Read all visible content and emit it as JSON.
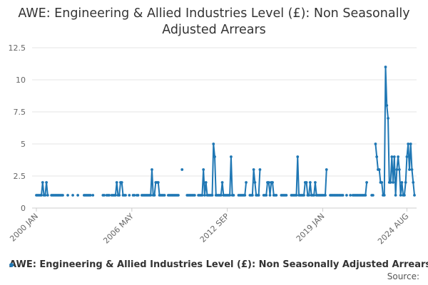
{
  "chart_data": {
    "type": "line",
    "title": "AWE: Engineering & Allied Industries Level (£): Non Seasonally Adjusted Arrears",
    "xlabel": "",
    "ylabel": "",
    "ylim": [
      0,
      12.5
    ],
    "yticks": [
      "0",
      "2.5",
      "5",
      "7.5",
      "10",
      "12.5"
    ],
    "xticks": [
      "2000 JAN",
      "2006 MAY",
      "2012 SEP",
      "2019 JAN",
      "2024 AUG"
    ],
    "xtick_dates": [
      "2000-01",
      "2006-05",
      "2012-09",
      "2019-01",
      "2024-08"
    ],
    "grid": "horizontal",
    "legend_position": "bottom",
    "color": "#1f77b4",
    "series": [
      {
        "name": "AWE: Engineering & Allied Industries Level (£): Non Seasonally Adjusted Arrears",
        "points": [
          [
            "2000-01",
            1
          ],
          [
            "2000-02",
            1
          ],
          [
            "2000-03",
            1
          ],
          [
            "2000-04",
            1
          ],
          [
            "2000-05",
            1
          ],
          [
            "2000-06",
            2
          ],
          [
            "2000-07",
            1
          ],
          [
            "2000-08",
            1
          ],
          [
            "2000-09",
            2
          ],
          [
            "2000-10",
            1
          ],
          [
            "2001-01",
            1
          ],
          [
            "2001-02",
            1
          ],
          [
            "2001-03",
            1
          ],
          [
            "2001-04",
            1
          ],
          [
            "2001-05",
            1
          ],
          [
            "2001-06",
            1
          ],
          [
            "2001-07",
            1
          ],
          [
            "2001-08",
            1
          ],
          [
            "2001-09",
            1
          ],
          [
            "2001-10",
            1
          ],
          [
            "2002-02",
            1
          ],
          [
            "2002-06",
            1
          ],
          [
            "2002-10",
            1
          ],
          [
            "2003-03",
            1
          ],
          [
            "2003-04",
            1
          ],
          [
            "2003-05",
            1
          ],
          [
            "2003-06",
            1
          ],
          [
            "2003-07",
            1
          ],
          [
            "2003-08",
            1
          ],
          [
            "2003-10",
            1
          ],
          [
            "2004-06",
            1
          ],
          [
            "2004-07",
            1
          ],
          [
            "2004-09",
            1
          ],
          [
            "2004-10",
            1
          ],
          [
            "2004-11",
            1
          ],
          [
            "2005-01",
            1
          ],
          [
            "2005-02",
            1
          ],
          [
            "2005-03",
            1
          ],
          [
            "2005-04",
            1
          ],
          [
            "2005-05",
            2
          ],
          [
            "2005-06",
            1
          ],
          [
            "2005-07",
            1
          ],
          [
            "2005-08",
            2
          ],
          [
            "2005-09",
            2
          ],
          [
            "2005-10",
            1
          ],
          [
            "2005-11",
            1
          ],
          [
            "2005-12",
            1
          ],
          [
            "2006-03",
            1
          ],
          [
            "2006-06",
            1
          ],
          [
            "2006-07",
            1
          ],
          [
            "2006-09",
            1
          ],
          [
            "2006-10",
            1
          ],
          [
            "2007-01",
            1
          ],
          [
            "2007-02",
            1
          ],
          [
            "2007-03",
            1
          ],
          [
            "2007-04",
            1
          ],
          [
            "2007-05",
            1
          ],
          [
            "2007-06",
            1
          ],
          [
            "2007-07",
            1
          ],
          [
            "2007-08",
            1
          ],
          [
            "2007-09",
            3
          ],
          [
            "2007-10",
            1
          ],
          [
            "2007-11",
            1
          ],
          [
            "2007-12",
            2
          ],
          [
            "2008-01",
            2
          ],
          [
            "2008-02",
            2
          ],
          [
            "2008-03",
            1
          ],
          [
            "2008-04",
            1
          ],
          [
            "2008-05",
            1
          ],
          [
            "2008-06",
            1
          ],
          [
            "2008-07",
            1
          ],
          [
            "2008-10",
            1
          ],
          [
            "2008-11",
            1
          ],
          [
            "2008-12",
            1
          ],
          [
            "2009-01",
            1
          ],
          [
            "2009-02",
            1
          ],
          [
            "2009-03",
            1
          ],
          [
            "2009-04",
            1
          ],
          [
            "2009-05",
            1
          ],
          [
            "2009-06",
            1
          ],
          [
            "2009-09",
            3
          ],
          [
            "2010-01",
            1
          ],
          [
            "2010-02",
            1
          ],
          [
            "2010-03",
            1
          ],
          [
            "2010-04",
            1
          ],
          [
            "2010-05",
            1
          ],
          [
            "2010-06",
            1
          ],
          [
            "2010-07",
            1
          ],
          [
            "2010-10",
            1
          ],
          [
            "2010-11",
            1
          ],
          [
            "2010-12",
            1
          ],
          [
            "2011-01",
            1
          ],
          [
            "2011-02",
            3
          ],
          [
            "2011-03",
            1
          ],
          [
            "2011-04",
            2
          ],
          [
            "2011-05",
            1
          ],
          [
            "2011-06",
            1
          ],
          [
            "2011-07",
            1
          ],
          [
            "2011-08",
            1
          ],
          [
            "2011-09",
            1
          ],
          [
            "2011-10",
            5
          ],
          [
            "2011-11",
            4
          ],
          [
            "2011-12",
            1
          ],
          [
            "2012-01",
            1
          ],
          [
            "2012-02",
            1
          ],
          [
            "2012-03",
            1
          ],
          [
            "2012-04",
            1
          ],
          [
            "2012-05",
            2
          ],
          [
            "2012-06",
            1
          ],
          [
            "2012-07",
            1
          ],
          [
            "2012-08",
            1
          ],
          [
            "2012-09",
            1
          ],
          [
            "2012-10",
            1
          ],
          [
            "2012-11",
            1
          ],
          [
            "2012-12",
            4
          ],
          [
            "2013-01",
            1
          ],
          [
            "2013-02",
            1
          ],
          [
            "2013-06",
            1
          ],
          [
            "2013-07",
            1
          ],
          [
            "2013-08",
            1
          ],
          [
            "2013-09",
            1
          ],
          [
            "2013-10",
            1
          ],
          [
            "2013-11",
            1
          ],
          [
            "2013-12",
            2
          ],
          [
            "2014-03",
            1
          ],
          [
            "2014-04",
            1
          ],
          [
            "2014-05",
            1
          ],
          [
            "2014-06",
            3
          ],
          [
            "2014-07",
            2
          ],
          [
            "2014-08",
            1
          ],
          [
            "2014-09",
            1
          ],
          [
            "2014-10",
            1
          ],
          [
            "2014-11",
            3
          ],
          [
            "2015-02",
            1
          ],
          [
            "2015-03",
            1
          ],
          [
            "2015-04",
            1
          ],
          [
            "2015-05",
            2
          ],
          [
            "2015-06",
            2
          ],
          [
            "2015-07",
            1
          ],
          [
            "2015-08",
            2
          ],
          [
            "2015-09",
            2
          ],
          [
            "2015-10",
            1
          ],
          [
            "2015-11",
            1
          ],
          [
            "2015-12",
            1
          ],
          [
            "2016-04",
            1
          ],
          [
            "2016-05",
            1
          ],
          [
            "2016-06",
            1
          ],
          [
            "2016-07",
            1
          ],
          [
            "2016-08",
            1
          ],
          [
            "2016-12",
            1
          ],
          [
            "2017-01",
            1
          ],
          [
            "2017-02",
            1
          ],
          [
            "2017-03",
            1
          ],
          [
            "2017-04",
            1
          ],
          [
            "2017-05",
            4
          ],
          [
            "2017-06",
            1
          ],
          [
            "2017-07",
            1
          ],
          [
            "2017-08",
            1
          ],
          [
            "2017-09",
            1
          ],
          [
            "2017-10",
            1
          ],
          [
            "2017-11",
            2
          ],
          [
            "2017-12",
            2
          ],
          [
            "2018-01",
            1
          ],
          [
            "2018-02",
            1
          ],
          [
            "2018-03",
            2
          ],
          [
            "2018-04",
            1
          ],
          [
            "2018-05",
            1
          ],
          [
            "2018-06",
            1
          ],
          [
            "2018-07",
            2
          ],
          [
            "2018-08",
            1
          ],
          [
            "2018-09",
            1
          ],
          [
            "2018-10",
            1
          ],
          [
            "2018-11",
            1
          ],
          [
            "2018-12",
            1
          ],
          [
            "2019-01",
            1
          ],
          [
            "2019-02",
            1
          ],
          [
            "2019-03",
            1
          ],
          [
            "2019-04",
            3
          ],
          [
            "2019-07",
            1
          ],
          [
            "2019-08",
            1
          ],
          [
            "2019-09",
            1
          ],
          [
            "2019-10",
            1
          ],
          [
            "2019-11",
            1
          ],
          [
            "2019-12",
            1
          ],
          [
            "2020-01",
            1
          ],
          [
            "2020-02",
            1
          ],
          [
            "2020-03",
            1
          ],
          [
            "2020-04",
            1
          ],
          [
            "2020-05",
            1
          ],
          [
            "2020-08",
            1
          ],
          [
            "2020-11",
            1
          ],
          [
            "2021-01",
            1
          ],
          [
            "2021-02",
            1
          ],
          [
            "2021-03",
            1
          ],
          [
            "2021-04",
            1
          ],
          [
            "2021-05",
            1
          ],
          [
            "2021-06",
            1
          ],
          [
            "2021-07",
            1
          ],
          [
            "2021-08",
            1
          ],
          [
            "2021-09",
            1
          ],
          [
            "2021-10",
            1
          ],
          [
            "2021-11",
            1
          ],
          [
            "2021-12",
            2
          ],
          [
            "2022-04",
            1
          ],
          [
            "2022-05",
            1
          ],
          [
            "2022-07",
            5
          ],
          [
            "2022-08",
            4
          ],
          [
            "2022-09",
            3
          ],
          [
            "2022-10",
            3
          ],
          [
            "2022-11",
            2
          ],
          [
            "2022-12",
            2
          ],
          [
            "2023-01",
            1
          ],
          [
            "2023-02",
            1
          ],
          [
            "2023-03",
            11
          ],
          [
            "2023-04",
            8
          ],
          [
            "2023-05",
            7
          ],
          [
            "2023-06",
            2
          ],
          [
            "2023-07",
            2
          ],
          [
            "2023-08",
            4
          ],
          [
            "2023-09",
            2
          ],
          [
            "2023-10",
            4
          ],
          [
            "2023-11",
            1
          ],
          [
            "2023-12",
            3
          ],
          [
            "2024-01",
            4
          ],
          [
            "2024-02",
            3
          ],
          [
            "2024-03",
            1
          ],
          [
            "2024-04",
            2
          ],
          [
            "2024-05",
            1
          ],
          [
            "2024-06",
            1
          ],
          [
            "2024-07",
            2
          ],
          [
            "2024-08",
            4
          ],
          [
            "2024-09",
            5
          ],
          [
            "2024-10",
            3
          ],
          [
            "2024-11",
            5
          ],
          [
            "2024-12",
            3
          ],
          [
            "2025-01",
            2
          ],
          [
            "2025-02",
            1
          ]
        ]
      }
    ]
  },
  "footer": {
    "source_label": "Source:"
  }
}
